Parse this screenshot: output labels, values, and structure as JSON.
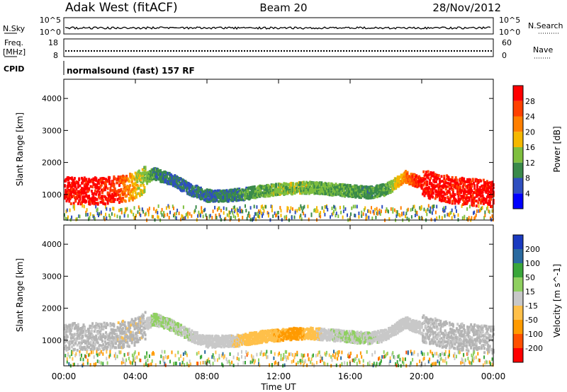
{
  "header": {
    "station": "Adak West (fitACF)",
    "beam": "Beam 20",
    "date": "28/Nov/2012"
  },
  "summary": {
    "nsky_label": "N.Sky",
    "nsearch_label": "N.Search",
    "freq_label_1": "Freq.",
    "freq_label_2": "[MHz]",
    "nave_label": "Nave",
    "cpid_label": "CPID",
    "cpid_text": "normalsound (fast) 157 RF",
    "noise_ticks": [
      "10^5",
      "10^0"
    ],
    "noise_ticks_right": [
      "10^5",
      "10^0"
    ],
    "freq_ticks": [
      "18",
      "8"
    ],
    "nave_ticks": [
      "60",
      "0"
    ]
  },
  "colors": {
    "power_scale": [
      "#0000ff",
      "#2f4fbf",
      "#3a8a4a",
      "#7fbf3f",
      "#f5b800",
      "#ff7f00",
      "#ff4000",
      "#ff0000"
    ],
    "velocity_scale": [
      "#ff0000",
      "#ff5000",
      "#ff9a00",
      "#ffc04a",
      "#c8c8c8",
      "#8fd060",
      "#3aa63a",
      "#2a6aa0",
      "#1a3ac0"
    ],
    "ground_scatter": "#b4b4b4"
  },
  "chart_data": [
    {
      "type": "heatmap",
      "panel": "power",
      "ylabel": "Slant Range [km]",
      "colorbar_label": "Power [dB]",
      "colorbar_ticks": [
        "4",
        "8",
        "12",
        "16",
        "20",
        "24",
        "28"
      ],
      "colorbar_range": [
        0,
        32
      ],
      "yticks": [
        1000,
        2000,
        3000,
        4000
      ],
      "ylim": [
        200,
        4600
      ],
      "xlim_hours": [
        0,
        24
      ],
      "x_hours": [
        0,
        1,
        2,
        3,
        4,
        4.5,
        5,
        6,
        7,
        8,
        9,
        10,
        11,
        12,
        13,
        14,
        15,
        16,
        17,
        18,
        19,
        20,
        21,
        22,
        23,
        24
      ],
      "echo_center_km": [
        1150,
        1150,
        1150,
        1200,
        1300,
        1500,
        1700,
        1500,
        1200,
        1000,
        1000,
        1050,
        1150,
        1200,
        1250,
        1250,
        1200,
        1150,
        1100,
        1200,
        1600,
        1400,
        1250,
        1150,
        1100,
        1050
      ],
      "echo_power_db": [
        30,
        30,
        29,
        27,
        18,
        14,
        10,
        8,
        7,
        8,
        9,
        10,
        12,
        14,
        14,
        13,
        12,
        11,
        10,
        12,
        22,
        30,
        30,
        29,
        30,
        30
      ]
    },
    {
      "type": "heatmap",
      "panel": "velocity",
      "ylabel": "Slant Range [km]",
      "colorbar_label": "Velocity [m s^-1]",
      "colorbar_ticks": [
        "-200",
        "-100",
        "-50",
        "-15",
        "15",
        "50",
        "100",
        "200"
      ],
      "colorbar_range": [
        -250,
        250
      ],
      "yticks": [
        1000,
        2000,
        3000,
        4000
      ],
      "ylim": [
        200,
        4600
      ],
      "xlim_hours": [
        0,
        24
      ],
      "x_hours": [
        0,
        1,
        2,
        3,
        4,
        4.5,
        5,
        6,
        7,
        8,
        9,
        10,
        11,
        12,
        13,
        14,
        15,
        16,
        17,
        18,
        19,
        20,
        21,
        22,
        23,
        24
      ],
      "echo_center_km": [
        1150,
        1150,
        1150,
        1200,
        1300,
        1500,
        1700,
        1500,
        1200,
        1000,
        1000,
        1050,
        1150,
        1200,
        1250,
        1250,
        1200,
        1150,
        1100,
        1200,
        1600,
        1400,
        1250,
        1150,
        1100,
        1050
      ],
      "echo_velocity": [
        0,
        0,
        0,
        -20,
        -30,
        -10,
        40,
        30,
        20,
        0,
        -10,
        -40,
        -60,
        -80,
        -100,
        -40,
        20,
        30,
        20,
        10,
        0,
        0,
        0,
        0,
        0,
        0
      ]
    }
  ],
  "time_axis": {
    "label": "Time UT",
    "ticks": [
      "00:00",
      "04:00",
      "08:00",
      "12:00",
      "16:00",
      "20:00",
      "00:00"
    ]
  }
}
